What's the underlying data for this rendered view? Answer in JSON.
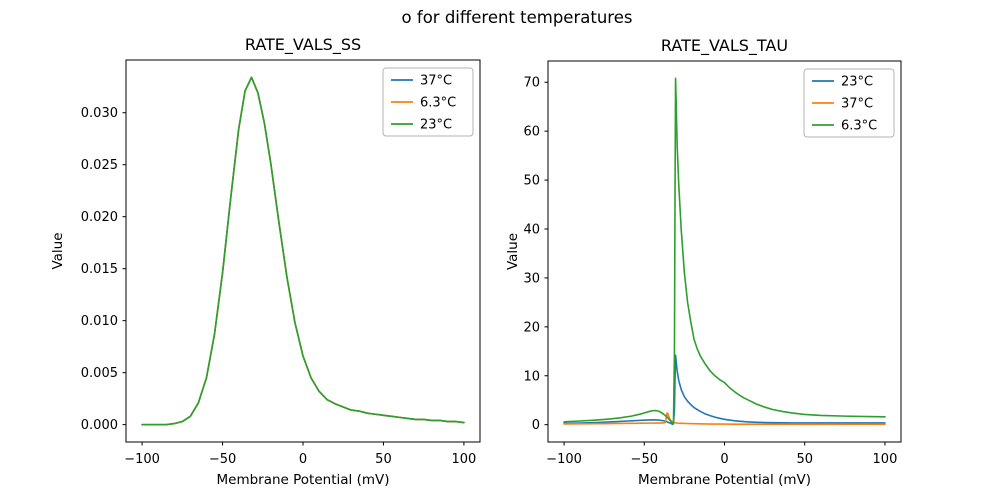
{
  "figure": {
    "suptitle": "o for different temperatures",
    "background": "#ffffff"
  },
  "palette": {
    "blue": "#1f77b4",
    "orange": "#ff7f0e",
    "green": "#2ca02c"
  },
  "chart_data": [
    {
      "id": "rate-vals-ss",
      "type": "line",
      "title": "RATE_VALS_SS",
      "xlabel": "Membrane Potential (mV)",
      "ylabel": "Value",
      "grid": false,
      "legend_position": "upper right",
      "xlim": [
        -110,
        110
      ],
      "ylim": [
        -0.00167,
        0.03507
      ],
      "xticks": [
        -100,
        -50,
        0,
        50,
        100
      ],
      "xtick_labels": [
        "−100",
        "−50",
        "0",
        "50",
        "100"
      ],
      "yticks": [
        0.0,
        0.005,
        0.01,
        0.015,
        0.02,
        0.025,
        0.03
      ],
      "ytick_labels": [
        "0.000",
        "0.005",
        "0.010",
        "0.015",
        "0.020",
        "0.025",
        "0.030"
      ],
      "note": "All three temperature curves overlap exactly; the last-drawn 23°C (green) curve is the visible one. Peak ≈ 0.0334 at −32 mV.",
      "x": [
        -100,
        -95,
        -90,
        -85,
        -80,
        -75,
        -70,
        -65,
        -60,
        -55,
        -50,
        -45,
        -40,
        -36,
        -32,
        -28,
        -24,
        -20,
        -15,
        -10,
        -5,
        0,
        5,
        10,
        15,
        20,
        25,
        30,
        35,
        40,
        45,
        50,
        55,
        60,
        65,
        70,
        75,
        80,
        85,
        90,
        95,
        100
      ],
      "shared_values": [
        0.0,
        0.0,
        0.0,
        0.0,
        0.0001,
        0.0003,
        0.0008,
        0.0021,
        0.0045,
        0.0087,
        0.0146,
        0.0217,
        0.0284,
        0.0321,
        0.0334,
        0.0319,
        0.029,
        0.0251,
        0.0195,
        0.0142,
        0.0098,
        0.0066,
        0.0045,
        0.0032,
        0.0024,
        0.002,
        0.0017,
        0.0014,
        0.0013,
        0.0011,
        0.001,
        0.0009,
        0.0008,
        0.0007,
        0.0006,
        0.0005,
        0.0005,
        0.0004,
        0.0004,
        0.0003,
        0.0003,
        0.0002
      ],
      "series": [
        {
          "name": "37°C",
          "color": "#1f77b4",
          "data": "shared"
        },
        {
          "name": "6.3°C",
          "color": "#ff7f0e",
          "data": "shared"
        },
        {
          "name": "23°C",
          "color": "#2ca02c",
          "data": "shared"
        }
      ]
    },
    {
      "id": "rate-vals-tau",
      "type": "line",
      "title": "RATE_VALS_TAU",
      "xlabel": "Membrane Potential (mV)",
      "ylabel": "Value",
      "grid": false,
      "legend_position": "upper right",
      "xlim": [
        -110,
        110
      ],
      "ylim": [
        -3.54,
        74.34
      ],
      "xticks": [
        -100,
        -50,
        0,
        50,
        100
      ],
      "xtick_labels": [
        "−100",
        "−50",
        "0",
        "50",
        "100"
      ],
      "yticks": [
        0,
        10,
        20,
        30,
        40,
        50,
        60,
        70
      ],
      "ytick_labels": [
        "0",
        "10",
        "20",
        "30",
        "40",
        "50",
        "60",
        "70"
      ],
      "note": "6.3°C spike ≈ 70.8 at −30.5 mV with secondary bump ≈ 2.9 at −43 mV; 23°C spike ≈ 14.2; 37°C small spike ≈ 2.35 near −36 mV.",
      "series": [
        {
          "name": "23°C",
          "color": "#1f77b4",
          "points": [
            [
              -100,
              0.28
            ],
            [
              -90,
              0.34
            ],
            [
              -80,
              0.44
            ],
            [
              -70,
              0.58
            ],
            [
              -60,
              0.75
            ],
            [
              -52,
              0.9
            ],
            [
              -47,
              0.98
            ],
            [
              -44,
              1.0
            ],
            [
              -41,
              0.95
            ],
            [
              -38,
              0.8
            ],
            [
              -36,
              0.6
            ],
            [
              -34,
              0.35
            ],
            [
              -33,
              0.2
            ],
            [
              -32.4,
              0.08
            ],
            [
              -31.8,
              0.2
            ],
            [
              -31.2,
              3.0
            ],
            [
              -30.8,
              10.0
            ],
            [
              -30.5,
              14.2
            ],
            [
              -30.2,
              13.2
            ],
            [
              -29.5,
              11.0
            ],
            [
              -28.5,
              9.0
            ],
            [
              -27,
              7.2
            ],
            [
              -25,
              5.7
            ],
            [
              -23,
              4.8
            ],
            [
              -21,
              4.1
            ],
            [
              -19,
              3.5
            ],
            [
              -17,
              3.1
            ],
            [
              -15,
              2.7
            ],
            [
              -12,
              2.2
            ],
            [
              -9,
              1.85
            ],
            [
              -6,
              1.55
            ],
            [
              -3,
              1.3
            ],
            [
              0,
              1.1
            ],
            [
              3,
              0.95
            ],
            [
              6,
              0.82
            ],
            [
              9,
              0.72
            ],
            [
              12,
              0.63
            ],
            [
              15,
              0.57
            ],
            [
              20,
              0.49
            ],
            [
              25,
              0.44
            ],
            [
              30,
              0.41
            ],
            [
              36,
              0.38
            ],
            [
              42,
              0.37
            ],
            [
              50,
              0.36
            ],
            [
              60,
              0.35
            ],
            [
              80,
              0.35
            ],
            [
              100,
              0.35
            ]
          ]
        },
        {
          "name": "37°C",
          "color": "#ff7f0e",
          "points": [
            [
              -100,
              0.15
            ],
            [
              -90,
              0.17
            ],
            [
              -80,
              0.2
            ],
            [
              -70,
              0.23
            ],
            [
              -60,
              0.27
            ],
            [
              -52,
              0.3
            ],
            [
              -46,
              0.32
            ],
            [
              -42,
              0.33
            ],
            [
              -38,
              0.35
            ],
            [
              -37,
              0.45
            ],
            [
              -36.4,
              1.1
            ],
            [
              -35.9,
              2.35
            ],
            [
              -35.4,
              2.35
            ],
            [
              -34.8,
              1.7
            ],
            [
              -34,
              1.1
            ],
            [
              -33,
              0.7
            ],
            [
              -32,
              0.5
            ],
            [
              -30.5,
              0.38
            ],
            [
              -29,
              0.32
            ],
            [
              -27,
              0.28
            ],
            [
              -24,
              0.24
            ],
            [
              -20,
              0.2
            ],
            [
              -16,
              0.17
            ],
            [
              -12,
              0.15
            ],
            [
              -8,
              0.13
            ],
            [
              -4,
              0.12
            ],
            [
              0,
              0.12
            ],
            [
              6,
              0.11
            ],
            [
              12,
              0.1
            ],
            [
              20,
              0.1
            ],
            [
              30,
              0.1
            ],
            [
              45,
              0.1
            ],
            [
              60,
              0.1
            ],
            [
              80,
              0.1
            ],
            [
              100,
              0.1
            ]
          ]
        },
        {
          "name": "6.3°C",
          "color": "#2ca02c",
          "points": [
            [
              -100,
              0.6
            ],
            [
              -90,
              0.75
            ],
            [
              -80,
              0.95
            ],
            [
              -72,
              1.15
            ],
            [
              -65,
              1.4
            ],
            [
              -58,
              1.75
            ],
            [
              -52,
              2.2
            ],
            [
              -48,
              2.6
            ],
            [
              -45,
              2.85
            ],
            [
              -43,
              2.9
            ],
            [
              -41,
              2.75
            ],
            [
              -39,
              2.4
            ],
            [
              -37,
              1.9
            ],
            [
              -35,
              1.3
            ],
            [
              -34,
              0.9
            ],
            [
              -33,
              0.5
            ],
            [
              -32.4,
              0.2
            ],
            [
              -31.8,
              0.6
            ],
            [
              -31.2,
              15
            ],
            [
              -30.8,
              50
            ],
            [
              -30.5,
              70.8
            ],
            [
              -30.2,
              67
            ],
            [
              -29.5,
              57
            ],
            [
              -28.5,
              49
            ],
            [
              -27,
              40
            ],
            [
              -25,
              31
            ],
            [
              -23,
              25
            ],
            [
              -21,
              21
            ],
            [
              -19,
              17.5
            ],
            [
              -17,
              15.5
            ],
            [
              -15,
              14
            ],
            [
              -12,
              12.4
            ],
            [
              -9,
              11
            ],
            [
              -6,
              10
            ],
            [
              -3,
              9.2
            ],
            [
              0,
              8.6
            ],
            [
              3,
              7.6
            ],
            [
              6,
              6.8
            ],
            [
              9,
              6.1
            ],
            [
              12,
              5.5
            ],
            [
              15,
              5.0
            ],
            [
              20,
              4.2
            ],
            [
              25,
              3.6
            ],
            [
              30,
              3.1
            ],
            [
              36,
              2.7
            ],
            [
              42,
              2.4
            ],
            [
              50,
              2.1
            ],
            [
              60,
              1.9
            ],
            [
              75,
              1.75
            ],
            [
              90,
              1.65
            ],
            [
              100,
              1.6
            ]
          ]
        }
      ]
    }
  ]
}
